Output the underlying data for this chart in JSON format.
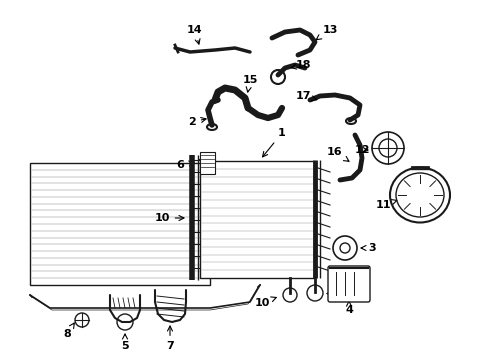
{
  "background_color": "#ffffff",
  "line_color": "#1a1a1a",
  "fig_width": 4.89,
  "fig_height": 3.6,
  "dpi": 100,
  "font_size": 8.0
}
